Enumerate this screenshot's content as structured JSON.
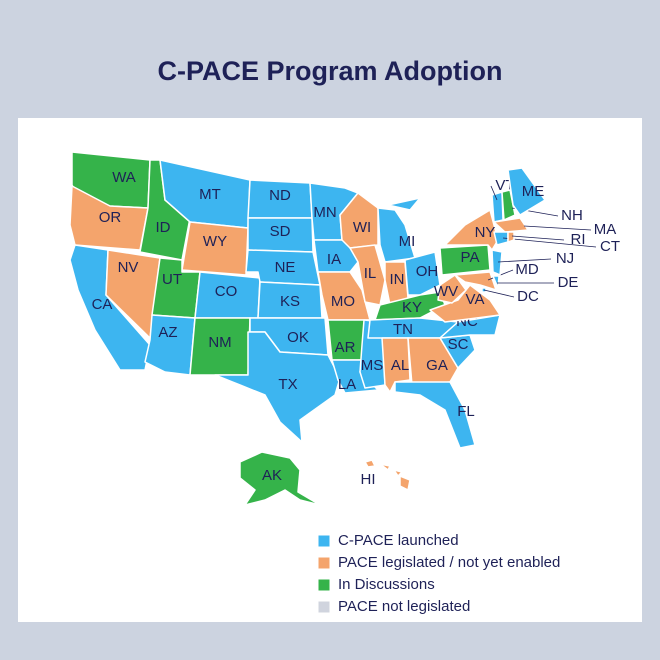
{
  "title": "C-PACE Program Adoption",
  "legend": [
    {
      "label": "C-PACE launched",
      "color": "#3db5f0"
    },
    {
      "label": "PACE legislated / not yet enabled",
      "color": "#f4a46c"
    },
    {
      "label": "In Discussions",
      "color": "#35b34a"
    },
    {
      "label": "PACE not legislated",
      "color": "#d0d4de"
    }
  ],
  "states": [
    {
      "label": "WA",
      "status": "In Discussions"
    },
    {
      "label": "OR",
      "status": "PACE legislated / not yet enabled"
    },
    {
      "label": "CA",
      "status": "C-PACE launched"
    },
    {
      "label": "NV",
      "status": "PACE legislated / not yet enabled"
    },
    {
      "label": "ID",
      "status": "In Discussions"
    },
    {
      "label": "MT",
      "status": "C-PACE launched"
    },
    {
      "label": "WY",
      "status": "PACE legislated / not yet enabled"
    },
    {
      "label": "UT",
      "status": "In Discussions"
    },
    {
      "label": "AZ",
      "status": "C-PACE launched"
    },
    {
      "label": "CO",
      "status": "C-PACE launched"
    },
    {
      "label": "NM",
      "status": "In Discussions"
    },
    {
      "label": "ND",
      "status": "C-PACE launched"
    },
    {
      "label": "SD",
      "status": "C-PACE launched"
    },
    {
      "label": "NE",
      "status": "C-PACE launched"
    },
    {
      "label": "KS",
      "status": "C-PACE launched"
    },
    {
      "label": "OK",
      "status": "C-PACE launched"
    },
    {
      "label": "TX",
      "status": "C-PACE launched"
    },
    {
      "label": "MN",
      "status": "C-PACE launched"
    },
    {
      "label": "IA",
      "status": "C-PACE launched"
    },
    {
      "label": "MO",
      "status": "PACE legislated / not yet enabled"
    },
    {
      "label": "AR",
      "status": "In Discussions"
    },
    {
      "label": "LA",
      "status": "C-PACE launched"
    },
    {
      "label": "WI",
      "status": "PACE legislated / not yet enabled"
    },
    {
      "label": "IL",
      "status": "PACE legislated / not yet enabled"
    },
    {
      "label": "MS",
      "status": "C-PACE launched"
    },
    {
      "label": "MI",
      "status": "C-PACE launched"
    },
    {
      "label": "IN",
      "status": "PACE legislated / not yet enabled"
    },
    {
      "label": "OH",
      "status": "C-PACE launched"
    },
    {
      "label": "KY",
      "status": "In Discussions"
    },
    {
      "label": "TN",
      "status": "C-PACE launched"
    },
    {
      "label": "AL",
      "status": "PACE legislated / not yet enabled"
    },
    {
      "label": "GA",
      "status": "PACE legislated / not yet enabled"
    },
    {
      "label": "FL",
      "status": "C-PACE launched"
    },
    {
      "label": "SC",
      "status": "C-PACE launched"
    },
    {
      "label": "NC",
      "status": "C-PACE launched"
    },
    {
      "label": "VA",
      "status": "PACE legislated / not yet enabled"
    },
    {
      "label": "WV",
      "status": "PACE legislated / not yet enabled"
    },
    {
      "label": "PA",
      "status": "In Discussions"
    },
    {
      "label": "MD",
      "status": "PACE legislated / not yet enabled"
    },
    {
      "label": "NY",
      "status": "PACE legislated / not yet enabled"
    },
    {
      "label": "NJ",
      "status": "C-PACE launched"
    },
    {
      "label": "DE",
      "status": "C-PACE launched"
    },
    {
      "label": "VT",
      "status": "C-PACE launched"
    },
    {
      "label": "NH",
      "status": "In Discussions"
    },
    {
      "label": "ME",
      "status": "C-PACE launched"
    },
    {
      "label": "MA",
      "status": "PACE legislated / not yet enabled"
    },
    {
      "label": "CT",
      "status": "C-PACE launched"
    },
    {
      "label": "RI",
      "status": "PACE legislated / not yet enabled"
    },
    {
      "label": "DC",
      "status": "C-PACE launched"
    },
    {
      "label": "AK",
      "status": "In Discussions"
    },
    {
      "label": "HI",
      "status": "PACE legislated / not yet enabled"
    }
  ]
}
